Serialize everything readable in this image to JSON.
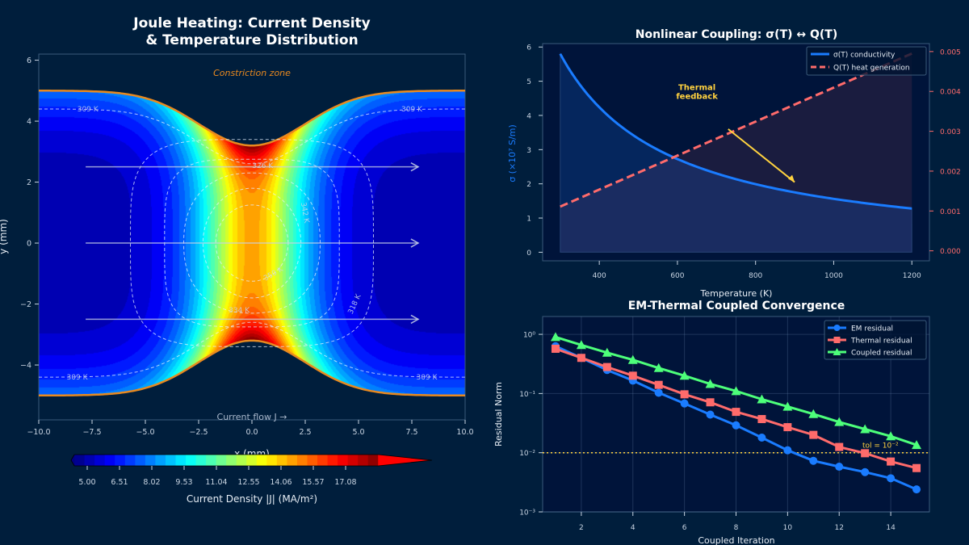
{
  "colors": {
    "background": "#001e3c",
    "axes_bg": "#00143a",
    "em": "#1a7cff",
    "thermal": "#ff6b6b",
    "coupled": "#4dff7a",
    "boundary": "#e8891f",
    "annotation": "#ffd23f",
    "spine": "#3a5a7a"
  },
  "chart_data": [
    {
      "type": "heatmap",
      "title": "Joule Heating: Current Density\n& Temperature Distribution",
      "title_lines": [
        "Joule Heating: Current Density",
        "& Temperature Distribution"
      ],
      "xlabel": "x (mm)",
      "ylabel": "y (mm)",
      "xlim": [
        -10,
        10
      ],
      "ylim": [
        -5.8,
        6.2
      ],
      "xticks": [
        "−10.0",
        "−7.5",
        "−5.0",
        "−2.5",
        "0.0",
        "2.5",
        "5.0",
        "7.5",
        "10.0"
      ],
      "xtick_values": [
        -10,
        -7.5,
        -5,
        -2.5,
        0,
        2.5,
        5,
        7.5,
        10
      ],
      "yticks": [
        "−4",
        "−2",
        "0",
        "2",
        "4",
        "6"
      ],
      "ytick_values": [
        -4,
        -2,
        0,
        2,
        4,
        6
      ],
      "colormap": "jet",
      "colorbar": {
        "label": "Current Density |J| (MA/m²)",
        "ticks": [
          "5.00",
          "6.51",
          "8.02",
          "9.53",
          "11.04",
          "12.55",
          "14.06",
          "15.57",
          "17.08"
        ],
        "tick_values": [
          5.0,
          6.51,
          8.02,
          9.53,
          11.04,
          12.55,
          14.06,
          15.57,
          17.08
        ],
        "range": [
          4.4,
          18.6
        ],
        "extend": "both"
      },
      "boundary": {
        "outer_half_width": 5.0,
        "neck_half_width": 3.2
      },
      "temperature_contours": [
        {
          "label": "309 K",
          "value": 309
        },
        {
          "label": "318 K",
          "value": 318
        },
        {
          "label": "326 K",
          "value": 326
        },
        {
          "label": "334 K",
          "value": 334
        },
        {
          "label": "342 K",
          "value": 342
        },
        {
          "label": "350 K",
          "value": 350
        }
      ],
      "current_arrows_y": [
        2.5,
        0,
        -2.5
      ],
      "annotations": {
        "constriction": "Constriction zone",
        "flow": "Current flow  J →"
      }
    },
    {
      "type": "line",
      "title": "Nonlinear Coupling: σ(T) ↔ Q(T)",
      "xlabel": "Temperature (K)",
      "ylabel": "σ (×10⁷ S/m)",
      "xlim": [
        255,
        1245
      ],
      "ylim": [
        -0.25,
        6.1
      ],
      "y2lim": [
        -0.00025,
        0.0052
      ],
      "xticks": [
        "400",
        "600",
        "800",
        "1000",
        "1200"
      ],
      "xtick_values": [
        400,
        600,
        800,
        1000,
        1200
      ],
      "yticks": [
        "0",
        "1",
        "2",
        "3",
        "4",
        "5",
        "6"
      ],
      "ytick_values": [
        0,
        1,
        2,
        3,
        4,
        5,
        6
      ],
      "y2ticks": [
        "0.000",
        "0.001",
        "0.002",
        "0.003",
        "0.004",
        "0.005"
      ],
      "y2tick_values": [
        0,
        0.001,
        0.002,
        0.003,
        0.004,
        0.005
      ],
      "series": [
        {
          "name": "σ(T) conductivity",
          "x": [
            300,
            400,
            500,
            600,
            700,
            800,
            900,
            1000,
            1100,
            1200
          ],
          "values": [
            5.8,
            4.25,
            3.33,
            2.73,
            2.3,
            1.99,
            1.75,
            1.56,
            1.41,
            1.28
          ],
          "axis": "left",
          "style": "solid"
        },
        {
          "name": "Q(T) heat generation",
          "x": [
            300,
            1200
          ],
          "values": [
            0.00111,
            0.00495
          ],
          "axis": "right",
          "style": "dashed"
        }
      ],
      "annotation": {
        "text_lines": [
          "Thermal",
          "feedback"
        ],
        "text_at": [
          650,
          4.6
        ],
        "arrow_from": [
          730,
          3.6
        ],
        "arrow_to": [
          900,
          2.05
        ]
      },
      "legend": "upper-right"
    },
    {
      "type": "line",
      "title": "EM-Thermal Coupled Convergence",
      "xlabel": "Coupled Iteration",
      "ylabel": "Residual Norm",
      "yscale": "log",
      "xlim": [
        0.5,
        15.5
      ],
      "ylim": [
        0.001,
        2.0
      ],
      "xticks": [
        "2",
        "4",
        "6",
        "8",
        "10",
        "12",
        "14"
      ],
      "xtick_values": [
        2,
        4,
        6,
        8,
        10,
        12,
        14
      ],
      "yticks": [
        "10⁰",
        "10⁻¹",
        "10⁻²",
        "10⁻³"
      ],
      "ytick_values": [
        1,
        0.1,
        0.01,
        0.001
      ],
      "grid": true,
      "x": [
        1,
        2,
        3,
        4,
        5,
        6,
        7,
        8,
        9,
        10,
        11,
        12,
        13,
        14,
        15
      ],
      "series": [
        {
          "name": "EM residual",
          "marker": "circle",
          "values": [
            0.63,
            0.4,
            0.25,
            0.165,
            0.103,
            0.068,
            0.044,
            0.029,
            0.018,
            0.011,
            0.0073,
            0.0058,
            0.0047,
            0.0037,
            0.0024
          ]
        },
        {
          "name": "Thermal residual",
          "marker": "square",
          "values": [
            0.57,
            0.4,
            0.28,
            0.2,
            0.14,
            0.097,
            0.071,
            0.049,
            0.037,
            0.027,
            0.02,
            0.0125,
            0.0098,
            0.0071,
            0.0055
          ]
        },
        {
          "name": "Coupled residual",
          "marker": "triangle",
          "values": [
            0.9,
            0.66,
            0.49,
            0.37,
            0.27,
            0.2,
            0.145,
            0.11,
            0.08,
            0.06,
            0.045,
            0.033,
            0.025,
            0.019,
            0.0135
          ]
        }
      ],
      "tolerance": {
        "value": 0.01,
        "label": "tol = 10⁻²"
      },
      "legend": "upper-right"
    }
  ]
}
